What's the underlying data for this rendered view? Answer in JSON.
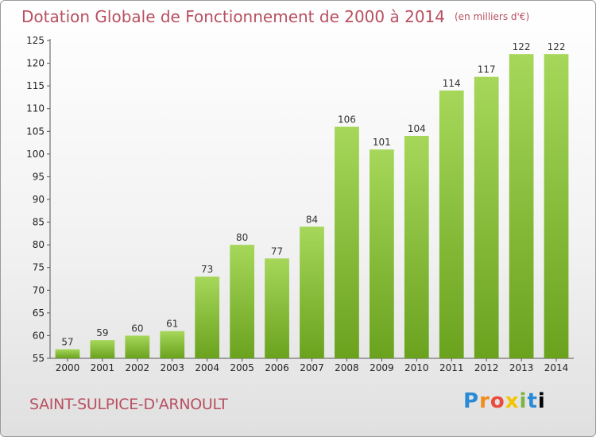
{
  "title": "Dotation Globale de Fonctionnement de 2000 à 2014",
  "unit_note": "(en milliers d'€)",
  "commune": "SAINT-SULPICE-D'ARNOULT",
  "logo": "Proxiti",
  "colors": {
    "bar_light": "#a6d75a",
    "bar_dark": "#6aa21e",
    "title": "#b85060"
  },
  "chart_data": {
    "type": "bar",
    "title": "Dotation Globale de Fonctionnement de 2000 à 2014",
    "subtitle": "(en milliers d'€)",
    "categories": [
      "2000",
      "2001",
      "2002",
      "2003",
      "2004",
      "2005",
      "2006",
      "2007",
      "2008",
      "2009",
      "2010",
      "2011",
      "2012",
      "2013",
      "2014"
    ],
    "values": [
      57,
      59,
      60,
      61,
      73,
      80,
      77,
      84,
      106,
      101,
      104,
      114,
      117,
      122,
      122
    ],
    "ylim": [
      55,
      125
    ],
    "yticks": [
      55,
      60,
      65,
      70,
      75,
      80,
      85,
      90,
      95,
      100,
      105,
      110,
      115,
      120,
      125
    ],
    "grid": false,
    "legend": "none"
  }
}
